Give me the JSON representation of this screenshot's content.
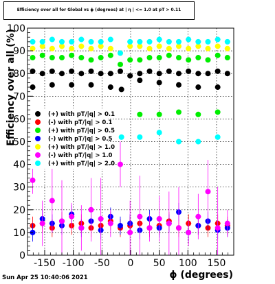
{
  "chart_data": {
    "type": "scatter",
    "title": "Efficiency over all for Global vs ϕ (degrees) at | η | <= 1.0 at pT > 0.11",
    "xlabel": "ϕ (degrees)",
    "ylabel": "Efficiency over all (%)",
    "xlim": [
      -180,
      180
    ],
    "ylim": [
      0,
      100
    ],
    "x_ticks": [
      -150,
      -100,
      -50,
      0,
      50,
      100,
      150
    ],
    "y_ticks": [
      0,
      10,
      20,
      30,
      40,
      50,
      60,
      70,
      80,
      90,
      100
    ],
    "grid": true,
    "legend_position": "left",
    "series": [
      {
        "name": "(+) with pT/|q| > 0.1",
        "color": "#000000",
        "x": [
          -171,
          -154,
          -137,
          -120,
          -103,
          -86,
          -69,
          -52,
          -35,
          -18,
          -1,
          16,
          33,
          50,
          67,
          84,
          101,
          118,
          135,
          152,
          169
        ],
        "y": [
          81,
          80,
          81,
          80,
          81,
          80,
          81,
          80,
          80,
          81,
          79,
          80,
          81,
          80,
          81,
          80,
          81,
          80,
          80,
          81,
          80
        ]
      },
      {
        "name": "(-) with pT/|q| > 0.1",
        "color": "#ff0000",
        "x": [
          -171,
          -154,
          -137,
          -120,
          -103,
          -86,
          -69,
          -52,
          -35,
          -18,
          -1,
          16,
          33,
          50,
          67,
          84,
          101,
          118,
          135,
          152,
          169
        ],
        "y": [
          13,
          14,
          12,
          15,
          13,
          14,
          12,
          13,
          15,
          12,
          13,
          14,
          12,
          13,
          15,
          12,
          14,
          13,
          12,
          14,
          13
        ]
      },
      {
        "name": "(+) with pT/|q| > 0.5",
        "color": "#00ee00",
        "x": [
          -171,
          -154,
          -137,
          -120,
          -103,
          -86,
          -69,
          -52,
          -35,
          -18,
          -1,
          16,
          33,
          50,
          67,
          84,
          101,
          118,
          135,
          152,
          169
        ],
        "y": [
          87,
          88,
          87,
          87,
          88,
          87,
          86,
          87,
          88,
          84,
          86,
          86,
          87,
          87,
          88,
          87,
          86,
          87,
          86,
          88,
          87
        ]
      },
      {
        "name": "(-) with pT/|q| > 0.5",
        "color": "#0000ff",
        "x": [
          -171,
          -154,
          -137,
          -120,
          -103,
          -86,
          -69,
          -52,
          -35,
          -18,
          -1,
          16,
          33,
          50,
          67,
          84,
          101,
          118,
          135,
          152,
          169
        ],
        "y": [
          10,
          16,
          14,
          13,
          18,
          12,
          15,
          11,
          17,
          13,
          14,
          11,
          16,
          12,
          14,
          19,
          10,
          13,
          15,
          11,
          12
        ]
      },
      {
        "name": "(+) with pT/|q| > 1.0",
        "color": "#ffff00",
        "x": [
          -171,
          -154,
          -137,
          -120,
          -103,
          -86,
          -69,
          -52,
          -35,
          -18,
          -1,
          16,
          33,
          50,
          67,
          84,
          101,
          118,
          135,
          152,
          169
        ],
        "y": [
          91,
          92,
          91,
          92,
          91,
          92,
          91,
          92,
          91,
          89,
          92,
          92,
          91,
          92,
          91,
          92,
          91,
          92,
          91,
          92,
          91
        ]
      },
      {
        "name": "(-) with pT/|q| > 1.0",
        "color": "#ff00ff",
        "x": [
          -171,
          -154,
          -137,
          -120,
          -103,
          -86,
          -69,
          -52,
          -35,
          -18,
          -1,
          16,
          33,
          50,
          67,
          84,
          101,
          118,
          135,
          152,
          169
        ],
        "y": [
          33,
          14,
          24,
          15,
          17,
          12,
          20,
          16,
          14,
          40,
          10,
          17,
          12,
          16,
          14,
          12,
          10,
          17,
          28,
          12,
          14
        ]
      },
      {
        "name": "(+) with pT/|q| > 2.0",
        "color": "#00ffff",
        "x": [
          -171,
          -154,
          -137,
          -120,
          -103,
          -86,
          -69,
          -52,
          -35,
          -18,
          -1,
          16,
          33,
          50,
          67,
          84,
          101,
          118,
          135,
          152,
          169
        ],
        "y": [
          94,
          94,
          95,
          94,
          94,
          95,
          94,
          94,
          95,
          89,
          94,
          94,
          94,
          95,
          94,
          94,
          95,
          94,
          94,
          95,
          94
        ]
      }
    ],
    "extra_points": {
      "x": [
        -171,
        -137,
        -103,
        -69,
        -35,
        -16,
        16,
        50,
        84,
        118,
        152
      ],
      "black": [
        74,
        75,
        75,
        75,
        74,
        73,
        77,
        76,
        75,
        74,
        74
      ],
      "green_low": [
        62,
        62,
        63,
        62,
        63
      ],
      "cyan_low": [
        52,
        52,
        54,
        50,
        50,
        52
      ],
      "lower_x": [
        -16,
        16,
        50,
        84,
        118,
        152
      ]
    }
  },
  "timestamp": "Sun Apr 25 10:40:06 2021"
}
